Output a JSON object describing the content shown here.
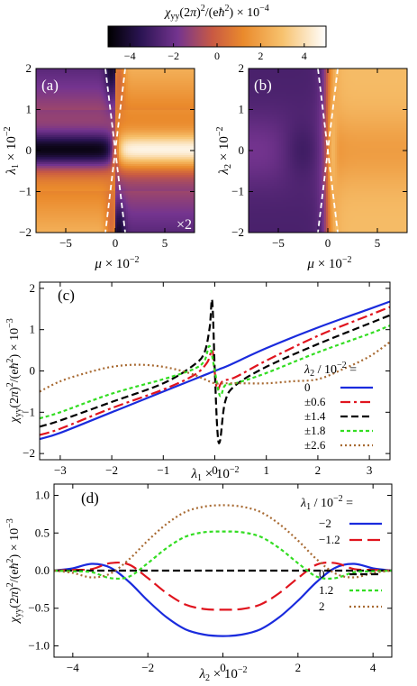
{
  "colorbar": {
    "label": "χ_yy(2π)^2/(eħ^2) × 10^-4",
    "ticks": [
      "−4",
      "−2",
      "0",
      "2",
      "4"
    ],
    "tick_values": [
      -4,
      -2,
      0,
      2,
      4
    ],
    "range": [
      -5,
      5
    ],
    "stops": [
      {
        "v": 0.0,
        "c": "#000000"
      },
      {
        "v": 0.15,
        "c": "#2b1453"
      },
      {
        "v": 0.32,
        "c": "#74348f"
      },
      {
        "v": 0.48,
        "c": "#c95a43"
      },
      {
        "v": 0.62,
        "c": "#ea8a2c"
      },
      {
        "v": 0.8,
        "c": "#f7c26e"
      },
      {
        "v": 1.0,
        "c": "#ffffff"
      }
    ]
  },
  "chart_data": [
    {
      "id": "a",
      "type": "heatmap",
      "panel_label": "(a)",
      "annotation": "×2",
      "xlabel": "μ × 10^-2",
      "ylabel": "λ_1 × 10^-2",
      "xlim": [
        -8,
        8
      ],
      "ylim": [
        -2,
        2
      ],
      "xticks": [
        -5,
        0,
        5
      ],
      "yticks": [
        -2,
        -1,
        0,
        1,
        2
      ],
      "xtick_labels": [
        "−5",
        "0",
        "5"
      ],
      "ytick_labels": [
        "−2",
        "−1",
        "0",
        "1",
        "2"
      ],
      "dashed_lines": [
        {
          "from": [
            -1.0,
            2
          ],
          "to": [
            1.0,
            -2
          ]
        },
        {
          "from": [
            1.0,
            2
          ],
          "to": [
            -1.0,
            -2
          ]
        }
      ]
    },
    {
      "id": "b",
      "type": "heatmap",
      "panel_label": "(b)",
      "xlabel": "μ × 10^-2",
      "ylabel": "λ_2 × 10^-2",
      "xlim": [
        -8,
        8
      ],
      "ylim": [
        -2,
        2
      ],
      "xticks": [
        -5,
        0,
        5
      ],
      "yticks": [
        -2,
        -1,
        0,
        1,
        2
      ],
      "xtick_labels": [
        "−5",
        "0",
        "5"
      ],
      "ytick_labels": [
        "−2",
        "−1",
        "0",
        "1",
        "2"
      ],
      "dashed_lines": [
        {
          "from": [
            -1.0,
            2
          ],
          "to": [
            1.0,
            -2
          ]
        },
        {
          "from": [
            1.0,
            2
          ],
          "to": [
            -1.0,
            -2
          ]
        }
      ]
    },
    {
      "id": "c",
      "type": "line",
      "panel_label": "(c)",
      "xlabel": "λ_1 × 10^-2",
      "ylabel": "χ_yy(2π)^2/(eħ^2) × 10^-3",
      "xlim": [
        -3.4,
        3.4
      ],
      "ylim": [
        -2.15,
        2.15
      ],
      "xticks": [
        -3,
        -2,
        -1,
        0,
        1,
        2,
        3
      ],
      "yticks": [
        -2,
        -1,
        0,
        1,
        2
      ],
      "xtick_labels": [
        "−3",
        "−2",
        "−1",
        "0",
        "1",
        "2",
        "3"
      ],
      "ytick_labels": [
        "−2",
        "−1",
        "0",
        "1",
        "2"
      ],
      "legend_title": "λ_2 / 10^-2 =",
      "legend_position": "bottom-right",
      "series": [
        {
          "name": "0",
          "color": "#1a2bdd",
          "dash": "",
          "x": [
            -3.4,
            -3,
            -2,
            -1,
            -0.3,
            -0.1,
            0,
            0.1,
            0.3,
            1,
            2,
            3,
            3.4
          ],
          "y": [
            -1.65,
            -1.5,
            -1.0,
            -0.5,
            -0.15,
            -0.05,
            0,
            0.05,
            0.15,
            0.55,
            1.05,
            1.5,
            1.68
          ]
        },
        {
          "name": "±0.6",
          "color": "#e0141e",
          "dash": "11,4,3,4",
          "x": [
            -3.4,
            -3,
            -2,
            -1,
            -0.4,
            -0.15,
            -0.05,
            0,
            0.05,
            0.15,
            0.4,
            1,
            2,
            3,
            3.4
          ],
          "y": [
            -1.55,
            -1.4,
            -0.9,
            -0.45,
            -0.1,
            0.2,
            0.5,
            -0.05,
            -0.45,
            -0.25,
            -0.15,
            0.25,
            0.85,
            1.35,
            1.55
          ]
        },
        {
          "name": "±1.4",
          "color": "#000000",
          "dash": "8,4",
          "x": [
            -3.4,
            -3,
            -2,
            -1,
            -0.4,
            -0.2,
            -0.1,
            -0.05,
            0,
            0.05,
            0.1,
            0.2,
            0.4,
            1,
            2,
            3,
            3.4
          ],
          "y": [
            -1.35,
            -1.2,
            -0.75,
            -0.3,
            0.15,
            0.45,
            1.05,
            1.7,
            0.0,
            -1.45,
            -1.7,
            -0.75,
            -0.35,
            0.1,
            0.65,
            1.15,
            1.35
          ]
        },
        {
          "name": "±1.8",
          "color": "#33dd22",
          "dash": "4,3",
          "x": [
            -3.4,
            -3,
            -2,
            -1,
            -0.4,
            -0.2,
            -0.1,
            0,
            0.1,
            0.2,
            0.4,
            1,
            2,
            3,
            3.4
          ],
          "y": [
            -1.15,
            -1.0,
            -0.55,
            -0.2,
            0.05,
            0.25,
            0.6,
            0,
            -0.6,
            -0.35,
            -0.3,
            -0.05,
            0.45,
            0.9,
            1.1
          ]
        },
        {
          "name": "±2.6",
          "color": "#a86a32",
          "dash": "2,3",
          "x": [
            -3.4,
            -3,
            -2.5,
            -2,
            -1.5,
            -1,
            -0.5,
            -0.2,
            0,
            0.2,
            0.5,
            1,
            1.5,
            2,
            2.5,
            3,
            3.4
          ],
          "y": [
            -0.5,
            -0.25,
            -0.05,
            0.1,
            0.15,
            0.1,
            -0.05,
            -0.2,
            -0.3,
            -0.3,
            -0.3,
            -0.3,
            -0.25,
            -0.2,
            0.05,
            0.35,
            0.7
          ]
        }
      ]
    },
    {
      "id": "d",
      "type": "line",
      "panel_label": "(d)",
      "xlabel": "λ_2 × 10^-2",
      "ylabel": "χ_yy(2π)^2/(eħ^2) × 10^-3",
      "xlim": [
        -4.5,
        4.5
      ],
      "ylim": [
        -1.15,
        1.15
      ],
      "xticks": [
        -4,
        -2,
        0,
        2,
        4
      ],
      "yticks": [
        -1.0,
        -0.5,
        0.0,
        0.5,
        1.0
      ],
      "xtick_labels": [
        "−4",
        "−2",
        "0",
        "2",
        "4"
      ],
      "ytick_labels": [
        "−1.0",
        "−0.5",
        "0.0",
        "0.5",
        "1.0"
      ],
      "legend_title": "λ_1 / 10^-2 =",
      "legend_position": "right",
      "series": [
        {
          "name": "−2",
          "color": "#1a2bdd",
          "dash": "",
          "x": [
            -4.5,
            -4,
            -3.5,
            -3,
            -2.5,
            -2,
            -1.5,
            -1,
            -0.5,
            0,
            0.5,
            1,
            1.5,
            2,
            2.5,
            3,
            3.5,
            4,
            4.5
          ],
          "y": [
            0,
            0.03,
            0.09,
            0.04,
            -0.15,
            -0.4,
            -0.62,
            -0.78,
            -0.85,
            -0.87,
            -0.85,
            -0.78,
            -0.62,
            -0.4,
            -0.15,
            0.04,
            0.09,
            0.03,
            0
          ]
        },
        {
          "name": "−1.2",
          "color": "#e0141e",
          "dash": "14,6",
          "x": [
            -4.5,
            -4,
            -3.5,
            -3,
            -2.5,
            -2,
            -1.5,
            -1,
            -0.5,
            0,
            0.5,
            1,
            1.5,
            2,
            2.5,
            3,
            3.5,
            4,
            4.5
          ],
          "y": [
            0,
            0.01,
            0.02,
            0.1,
            0.08,
            -0.1,
            -0.3,
            -0.45,
            -0.51,
            -0.52,
            -0.51,
            -0.45,
            -0.3,
            -0.1,
            0.08,
            0.1,
            0.02,
            0.01,
            0
          ]
        },
        {
          "name": "0",
          "color": "#000000",
          "dash": "8,4",
          "x": [
            -4.5,
            4.5
          ],
          "y": [
            0,
            0
          ]
        },
        {
          "name": "1.2",
          "color": "#33dd22",
          "dash": "4,3",
          "x": [
            -4.5,
            -4,
            -3.5,
            -3,
            -2.5,
            -2,
            -1.5,
            -1,
            -0.5,
            0,
            0.5,
            1,
            1.5,
            2,
            2.5,
            3,
            3.5,
            4,
            4.5
          ],
          "y": [
            0,
            -0.01,
            -0.02,
            -0.1,
            -0.08,
            0.1,
            0.3,
            0.45,
            0.51,
            0.52,
            0.51,
            0.45,
            0.3,
            0.1,
            -0.08,
            -0.1,
            -0.02,
            -0.01,
            0
          ]
        },
        {
          "name": "2",
          "color": "#a86a32",
          "dash": "2,3",
          "x": [
            -4.5,
            -4,
            -3.5,
            -3,
            -2.5,
            -2,
            -1.5,
            -1,
            -0.5,
            0,
            0.5,
            1,
            1.5,
            2,
            2.5,
            3,
            3.5,
            4,
            4.5
          ],
          "y": [
            0,
            -0.03,
            -0.09,
            -0.04,
            0.15,
            0.4,
            0.62,
            0.78,
            0.85,
            0.87,
            0.85,
            0.78,
            0.62,
            0.4,
            0.15,
            -0.04,
            -0.09,
            -0.03,
            0
          ]
        }
      ]
    }
  ]
}
